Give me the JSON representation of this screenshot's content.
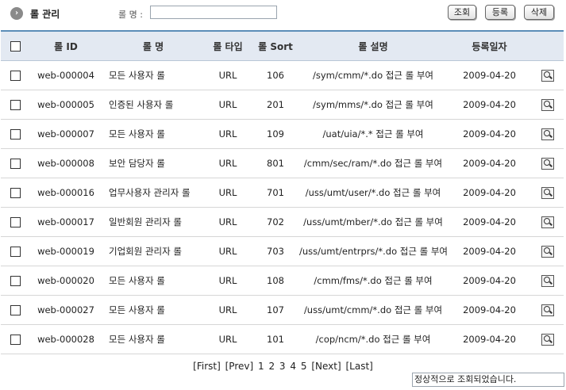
{
  "header": {
    "bullet_icon": "arrow-circle-icon",
    "title": "롤 관리",
    "search_label": "롤 명 :",
    "search_value": "",
    "buttons": {
      "search": "조회",
      "register": "등록",
      "delete": "삭제"
    }
  },
  "table": {
    "columns": [
      "롤 ID",
      "롤 명",
      "롤 타입",
      "롤 Sort",
      "롤 설명",
      "등록일자"
    ],
    "rows": [
      {
        "id": "web-000004",
        "name": "모든 사용자 롤",
        "type": "URL",
        "sort": "106",
        "desc": "/sym/cmm/*.do 접근 롤 부여",
        "date": "2009-04-20"
      },
      {
        "id": "web-000005",
        "name": "인증된 사용자 롤",
        "type": "URL",
        "sort": "201",
        "desc": "/sym/mms/*.do 접근 롤 부여",
        "date": "2009-04-20"
      },
      {
        "id": "web-000007",
        "name": "모든 사용자 롤",
        "type": "URL",
        "sort": "109",
        "desc": "/uat/uia/*.* 접근 롤 부여",
        "date": "2009-04-20"
      },
      {
        "id": "web-000008",
        "name": "보안 담당자 롤",
        "type": "URL",
        "sort": "801",
        "desc": "/cmm/sec/ram/*.do 접근 롤 부여",
        "date": "2009-04-20"
      },
      {
        "id": "web-000016",
        "name": "업무사용자 관리자 롤",
        "type": "URL",
        "sort": "701",
        "desc": "/uss/umt/user/*.do 접근 롤 부여",
        "date": "2009-04-20"
      },
      {
        "id": "web-000017",
        "name": "일반회원 관리자 롤",
        "type": "URL",
        "sort": "702",
        "desc": "/uss/umt/mber/*.do 접근 롤 부여",
        "date": "2009-04-20"
      },
      {
        "id": "web-000019",
        "name": "기업회원 관리자 롤",
        "type": "URL",
        "sort": "703",
        "desc": "/uss/umt/entrprs/*.do 접근 롤 부여",
        "date": "2009-04-20"
      },
      {
        "id": "web-000020",
        "name": "모든 사용자 롤",
        "type": "URL",
        "sort": "108",
        "desc": "/cmm/fms/*.do 접근 롤 부여",
        "date": "2009-04-20"
      },
      {
        "id": "web-000027",
        "name": "모든 사용자 롤",
        "type": "URL",
        "sort": "107",
        "desc": "/uss/umt/cmm/*.do 접근 롤 부여",
        "date": "2009-04-20"
      },
      {
        "id": "web-000028",
        "name": "모든 사용자 롤",
        "type": "URL",
        "sort": "101",
        "desc": "/cop/ncm/*.do 접근 롤 부여",
        "date": "2009-04-20"
      }
    ]
  },
  "pagination": {
    "first": "[First]",
    "prev": "[Prev]",
    "pages": [
      "1",
      "2",
      "3",
      "4",
      "5"
    ],
    "next": "[Next]",
    "last": "[Last]"
  },
  "status_text": "정상적으로 조회되었습니다."
}
